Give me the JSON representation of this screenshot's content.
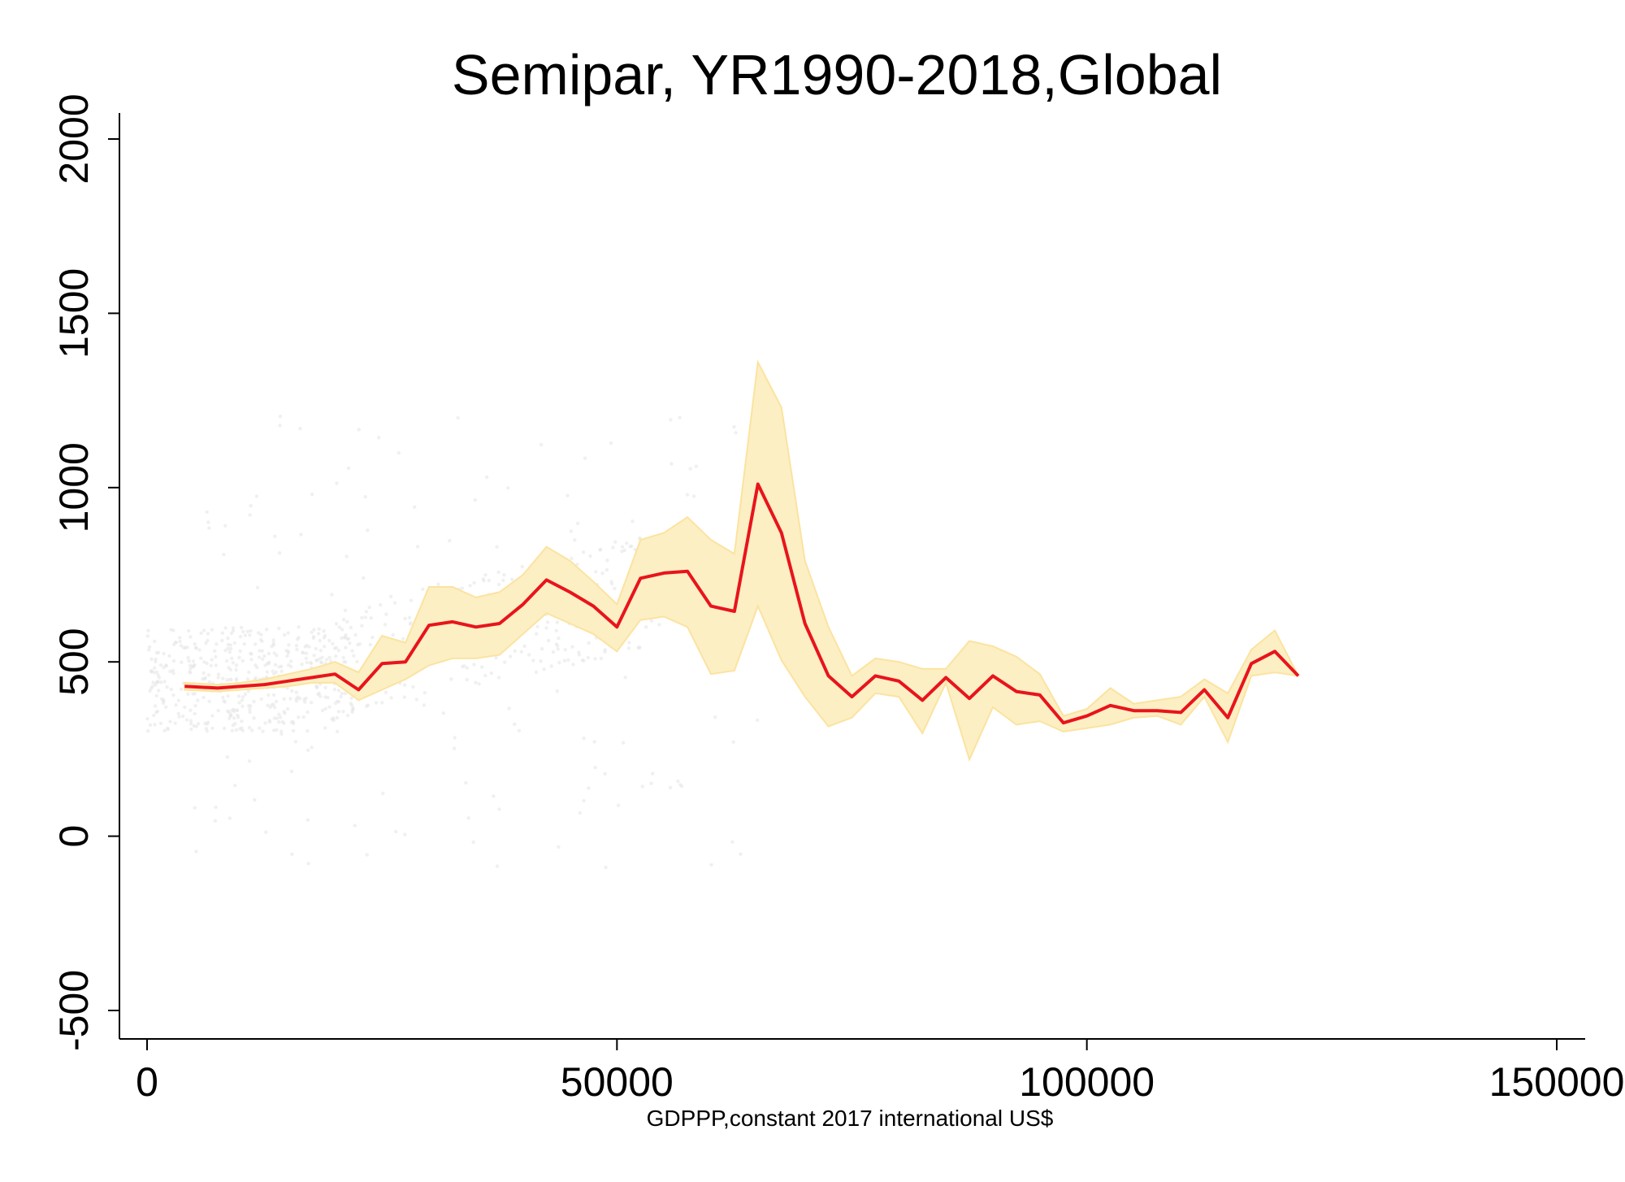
{
  "chart_data": {
    "type": "line",
    "title": "Semipar, YR1990-2018,Global",
    "xlabel": "GDPPP,constant 2017 international US$",
    "ylabel": "",
    "xlim": [
      0,
      150000
    ],
    "ylim": [
      -500,
      2000
    ],
    "x_ticks": [
      0,
      50000,
      100000,
      150000
    ],
    "x_tick_labels": [
      "0",
      "50000",
      "100000",
      "150000"
    ],
    "y_ticks": [
      -500,
      0,
      500,
      1000,
      1500,
      2000
    ],
    "y_tick_labels": [
      "-500",
      "0",
      "500",
      "1000",
      "1500",
      "2000"
    ],
    "grid": false,
    "colors": {
      "line": "#e8141c",
      "band": "#fdefc4",
      "band_edge": "#fbe3a0",
      "scatter": "#e6e6e6",
      "axis": "#000000"
    },
    "series": [
      {
        "kind": "line",
        "x": [
          4000,
          7500,
          10000,
          12500,
          15000,
          17500,
          20000,
          22500,
          25000,
          27500,
          30000,
          32500,
          35000,
          37500,
          40000,
          42500,
          45000,
          47500,
          50000,
          52500,
          55000,
          57500,
          60000,
          62500,
          65000,
          67500,
          70000,
          72500,
          75000,
          77500,
          80000,
          82500,
          85000,
          87500,
          90000,
          92500,
          95000,
          97500,
          100000,
          102500,
          105000,
          107500,
          110000,
          112500,
          115000,
          117500,
          120000,
          122500
        ],
        "y": [
          430,
          425,
          430,
          435,
          445,
          455,
          465,
          420,
          495,
          500,
          605,
          615,
          600,
          610,
          665,
          735,
          700,
          660,
          600,
          740,
          755,
          760,
          660,
          645,
          1010,
          870,
          610,
          460,
          400,
          460,
          445,
          390,
          455,
          395,
          460,
          415,
          405,
          325,
          345,
          375,
          360,
          360,
          355,
          420,
          340,
          495,
          530,
          460
        ]
      },
      {
        "kind": "band",
        "x": [
          4000,
          7500,
          10000,
          12500,
          15000,
          17500,
          20000,
          22500,
          25000,
          27500,
          30000,
          32500,
          35000,
          37500,
          40000,
          42500,
          45000,
          47500,
          50000,
          52500,
          55000,
          57500,
          60000,
          62500,
          65000,
          67500,
          70000,
          72500,
          75000,
          77500,
          80000,
          82500,
          85000,
          87500,
          90000,
          92500,
          95000,
          97500,
          100000,
          102500,
          105000,
          107500,
          110000,
          112500,
          115000,
          117500,
          120000,
          122500
        ],
        "lower": [
          420,
          415,
          420,
          425,
          430,
          440,
          440,
          390,
          420,
          450,
          490,
          510,
          510,
          520,
          580,
          640,
          610,
          580,
          530,
          620,
          630,
          600,
          465,
          475,
          660,
          505,
          400,
          315,
          340,
          410,
          400,
          295,
          440,
          220,
          370,
          320,
          330,
          300,
          310,
          320,
          340,
          345,
          320,
          400,
          270,
          460,
          470,
          460
        ],
        "upper": [
          440,
          435,
          440,
          450,
          465,
          480,
          500,
          470,
          575,
          555,
          715,
          715,
          685,
          700,
          750,
          830,
          790,
          730,
          665,
          850,
          870,
          915,
          850,
          810,
          1360,
          1230,
          790,
          600,
          460,
          510,
          500,
          480,
          480,
          560,
          545,
          515,
          465,
          345,
          365,
          425,
          380,
          390,
          400,
          450,
          410,
          535,
          590,
          460
        ]
      }
    ]
  }
}
